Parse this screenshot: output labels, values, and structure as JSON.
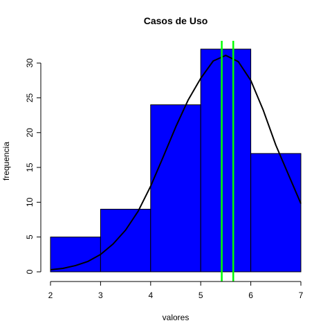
{
  "chart_data": {
    "type": "bar",
    "title": "Casos de Uso",
    "xlabel": "valores",
    "ylabel": "frequencia",
    "bin_edges": [
      2,
      3,
      4,
      5,
      6,
      7
    ],
    "counts": [
      5,
      9,
      24,
      32,
      17
    ],
    "xlim": [
      2,
      7
    ],
    "ylim": [
      0,
      32
    ],
    "x_ticks": [
      2,
      3,
      4,
      5,
      6,
      7
    ],
    "y_ticks": [
      0,
      5,
      10,
      15,
      20,
      25,
      30
    ],
    "density_curve": {
      "x": [
        2.0,
        2.25,
        2.5,
        2.75,
        3.0,
        3.25,
        3.5,
        3.75,
        4.0,
        4.25,
        4.5,
        4.75,
        5.0,
        5.25,
        5.5,
        5.75,
        6.0,
        6.25,
        6.5,
        6.75,
        7.0
      ],
      "y": [
        0.3,
        0.5,
        0.9,
        1.5,
        2.5,
        4.0,
        6.0,
        8.7,
        12.3,
        16.5,
        20.8,
        24.7,
        27.8,
        30.3,
        31.1,
        30.2,
        27.5,
        23.2,
        18.2,
        14.0,
        9.8
      ]
    },
    "vertical_lines": [
      5.42,
      5.65
    ],
    "colors": {
      "bars": "#0000ff",
      "bar_edge": "#000000",
      "curve": "#000000",
      "lines": "#00ff00"
    },
    "grid": false
  }
}
